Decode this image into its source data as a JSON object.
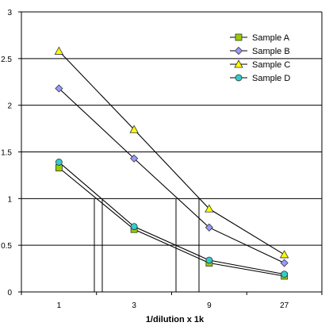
{
  "chart_data": {
    "type": "line",
    "title": "",
    "xlabel": "1/dilution x 1k",
    "ylabel": "",
    "categories": [
      "1",
      "3",
      "9",
      "27"
    ],
    "ylim": [
      0,
      3
    ],
    "yticks": [
      "0",
      "0.5",
      "1",
      "1.5",
      "2",
      "2.5",
      "3"
    ],
    "grid": "horizontal",
    "legend_position": "top-right",
    "series": [
      {
        "name": "Sample A",
        "values": [
          1.33,
          0.67,
          0.31,
          0.17
        ],
        "marker": "square",
        "color": "#99cc00"
      },
      {
        "name": "Sample B",
        "values": [
          2.18,
          1.43,
          0.69,
          0.31
        ],
        "marker": "diamond",
        "color": "#9999ff"
      },
      {
        "name": "Sample C",
        "values": [
          2.58,
          1.74,
          0.89,
          0.4
        ],
        "marker": "triangle",
        "color": "#ffff00"
      },
      {
        "name": "Sample D",
        "values": [
          1.39,
          0.7,
          0.34,
          0.19
        ],
        "marker": "circle",
        "color": "#33cccc"
      }
    ]
  }
}
